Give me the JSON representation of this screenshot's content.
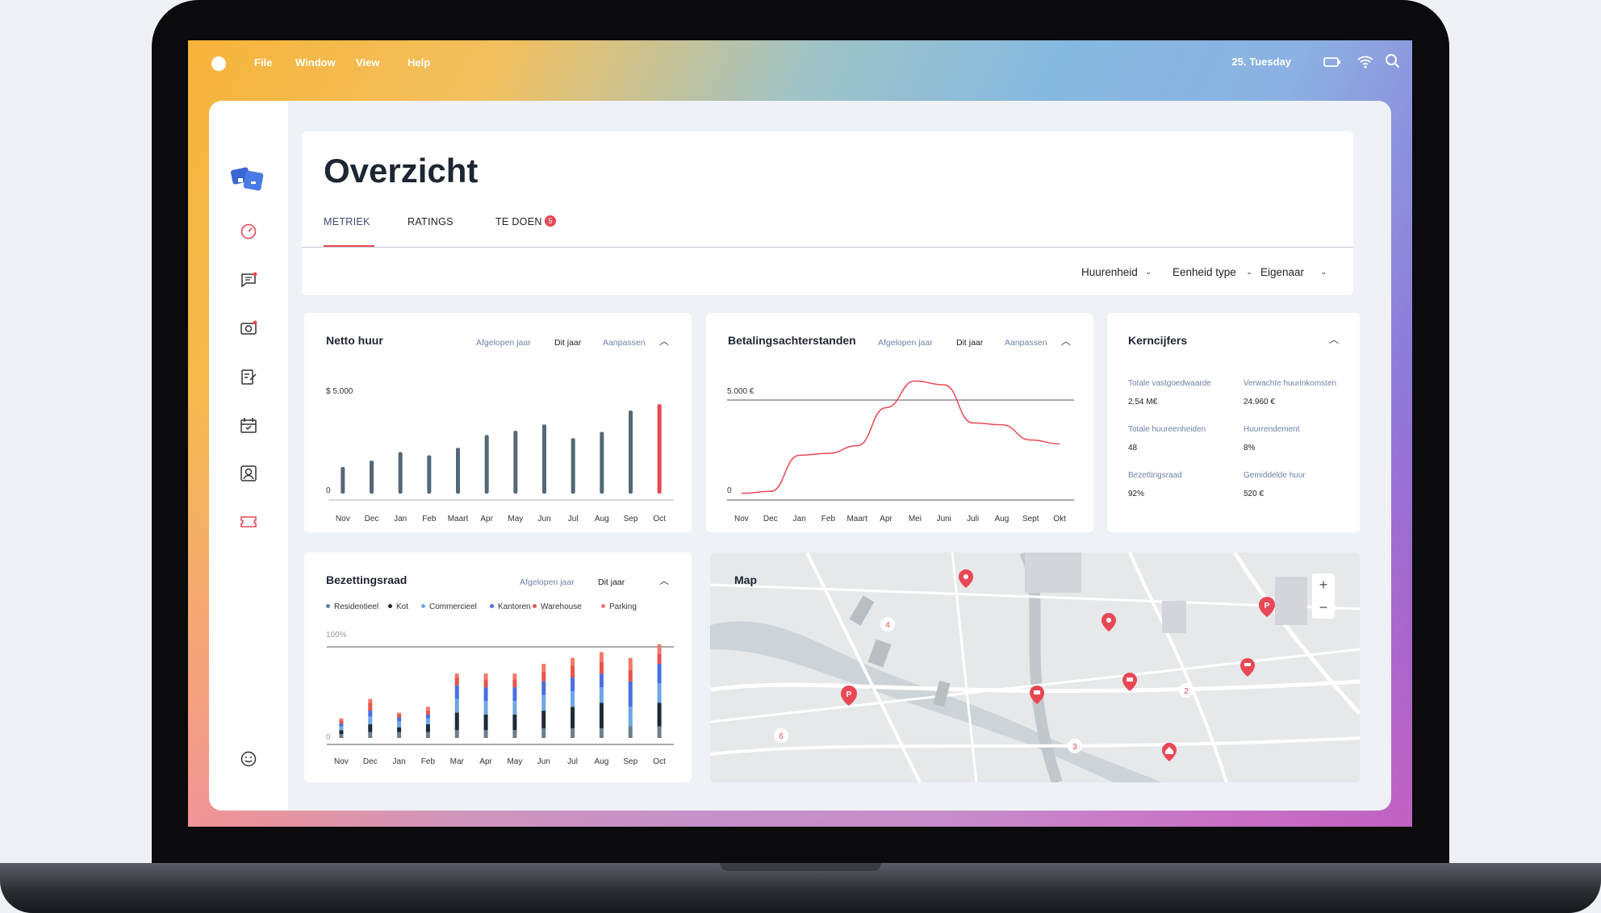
{
  "menubar": {
    "items": [
      "File",
      "Window",
      "View",
      "Help"
    ],
    "date": "25. Tuesday"
  },
  "header": {
    "title": "Overzicht",
    "tabs": [
      {
        "label": "METRIEK"
      },
      {
        "label": "RATINGS"
      },
      {
        "label": "TE DOEN",
        "badge": "5"
      }
    ]
  },
  "filters": [
    "Huurenheid",
    "Eenheid type",
    "Eigenaar"
  ],
  "colors": {
    "accent": "#e84855",
    "bar": "#536878",
    "residentieel": "#6a7f90",
    "kot": "#1f2a36",
    "commercieel": "#6ea6e6",
    "kantoren": "#4a6fe0",
    "warehouse": "#e8534b",
    "parking": "#f07a6a"
  },
  "netto": {
    "title": "Netto huur",
    "options": [
      "Afgelopen jaar",
      "Dit jaar",
      "Aanpassen"
    ],
    "ytop": "$ 5.000",
    "ybottom": "0"
  },
  "betaling": {
    "title": "Betalingsachterstanden",
    "options": [
      "Afgelopen jaar",
      "Dit jaar",
      "Aanpassen"
    ],
    "ytop": "5.000 €",
    "ybottom": "0"
  },
  "kern": {
    "title": "Kerncijfers",
    "items": [
      {
        "label": "Totale vastgoedwaarde",
        "value": "2,54 M€"
      },
      {
        "label": "Verwachte huurinkomsten",
        "value": "24.960 €"
      },
      {
        "label": "Totale huureenheiden",
        "value": "48"
      },
      {
        "label": "Huurrendement",
        "value": "8%"
      },
      {
        "label": "Bezettingsraad",
        "value": "92%"
      },
      {
        "label": "Gemiddelde huur",
        "value": "520 €"
      }
    ]
  },
  "bezetting": {
    "title": "Bezettingsraad",
    "options": [
      "Afgelopen jaar",
      "Dit jaar"
    ],
    "ytop": "100%",
    "ybottom": "0",
    "legend": [
      "Residentieel",
      "Kot",
      "Commercieel",
      "Kantoren",
      "Warehouse",
      "Parking"
    ]
  },
  "map": {
    "title": "Map",
    "zoom_in": "+",
    "zoom_out": "−",
    "clusters": [
      "4",
      "2",
      "6",
      "3"
    ],
    "pins": [
      "P",
      "P"
    ]
  },
  "chart_data": [
    {
      "type": "bar",
      "title": "Netto huur",
      "categories": [
        "Nov",
        "Dec",
        "Jan",
        "Feb",
        "Maart",
        "Apr",
        "May",
        "Jun",
        "Jul",
        "Aug",
        "Sep",
        "Oct"
      ],
      "values": [
        1250,
        1550,
        1950,
        1800,
        2150,
        2750,
        2950,
        3250,
        2600,
        2900,
        3900,
        4200
      ],
      "ylim": [
        0,
        5000
      ]
    },
    {
      "type": "line",
      "title": "Betalingsachterstanden",
      "categories": [
        "Nov",
        "Dec",
        "Jan",
        "Feb",
        "Maart",
        "Apr",
        "Mei",
        "Juni",
        "Juli",
        "Aug",
        "Sept",
        "Okt"
      ],
      "values": [
        100,
        200,
        2100,
        2200,
        2600,
        4600,
        6000,
        5800,
        3800,
        3700,
        2900,
        2700
      ],
      "ylim": [
        0,
        5000
      ]
    },
    {
      "type": "bar",
      "title": "Bezettingsraad",
      "stacked": true,
      "categories": [
        "Nov",
        "Dec",
        "Jan",
        "Feb",
        "Mar",
        "Apr",
        "May",
        "Jun",
        "Jul",
        "Aug",
        "Sep",
        "Oct"
      ],
      "series": [
        {
          "name": "Residentieel",
          "values": [
            4,
            6,
            6,
            6,
            8,
            8,
            8,
            10,
            10,
            10,
            12,
            12
          ]
        },
        {
          "name": "Kot",
          "values": [
            4,
            8,
            5,
            8,
            18,
            16,
            16,
            18,
            22,
            26,
            0,
            24
          ]
        },
        {
          "name": "Commercieel",
          "values": [
            4,
            8,
            6,
            6,
            14,
            14,
            14,
            16,
            16,
            16,
            20,
            20
          ]
        },
        {
          "name": "Kantoren",
          "values": [
            3,
            6,
            4,
            4,
            14,
            14,
            14,
            14,
            14,
            14,
            26,
            20
          ]
        },
        {
          "name": "Warehouse",
          "values": [
            3,
            8,
            3,
            4,
            8,
            8,
            8,
            10,
            12,
            12,
            12,
            10
          ]
        },
        {
          "name": "Parking",
          "values": [
            2,
            4,
            2,
            4,
            4,
            6,
            6,
            8,
            8,
            10,
            12,
            10
          ]
        }
      ],
      "ylim": [
        0,
        100
      ]
    }
  ]
}
